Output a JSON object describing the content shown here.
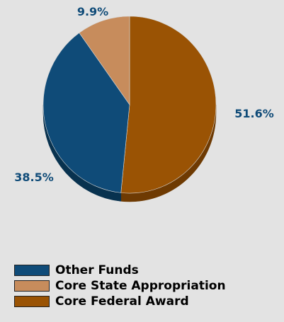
{
  "chart_data": {
    "type": "pie",
    "title": "",
    "slices": [
      {
        "label": "Core Federal Award",
        "value": 51.6,
        "value_label": "51.6%",
        "color": "#9a5304",
        "side_color": "#6e3a02"
      },
      {
        "label": "Other Funds",
        "value": 38.5,
        "value_label": "38.5%",
        "color": "#0f4b78",
        "side_color": "#08324f"
      },
      {
        "label": "Core State Appropriation",
        "value": 9.9,
        "value_label": "9.9%",
        "color": "#c78c5c",
        "side_color": "#9b6a42"
      }
    ],
    "legend": {
      "position": "bottom-left",
      "order": [
        "Other Funds",
        "Core State Appropriation",
        "Core Federal Award"
      ]
    }
  }
}
